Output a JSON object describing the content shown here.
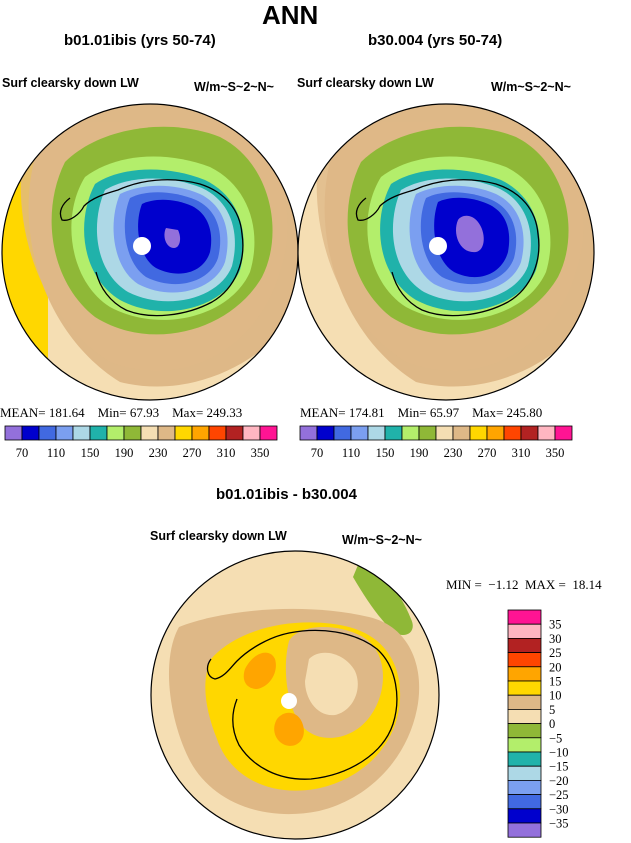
{
  "page_title": "ANN",
  "panels": [
    {
      "case": "b01.01ibis (yrs 50-74)",
      "variable": "Surf clearsky down LW",
      "units": "W/m~S~2~N~",
      "stats": {
        "mean_label": "MEAN=",
        "mean": "181.64",
        "min_label": "Min=",
        "min": "67.93",
        "max_label": "Max=",
        "max": "249.33"
      }
    },
    {
      "case": "b30.004 (yrs 50-74)",
      "variable": "Surf clearsky down LW",
      "units": "W/m~S~2~N~",
      "stats": {
        "mean_label": "MEAN=",
        "mean": "174.81",
        "min_label": "Min=",
        "min": "65.97",
        "max_label": "Max=",
        "max": "245.80"
      }
    }
  ],
  "horizontal_colorbar": {
    "colors": [
      "#9370db",
      "#0000cd",
      "#4169e1",
      "#7b9ff0",
      "#add8e6",
      "#20b2aa",
      "#b3ee6b",
      "#8fb837",
      "#f5deb3",
      "#deb887",
      "#ffd700",
      "#ffa500",
      "#ff4500",
      "#b22222",
      "#ffb6c1",
      "#ff1493"
    ],
    "labels": [
      "70",
      "110",
      "150",
      "190",
      "230",
      "270",
      "310",
      "350"
    ]
  },
  "diff_panel": {
    "title": "b01.01ibis - b30.004",
    "variable": "Surf clearsky down LW",
    "units": "W/m~S~2~N~",
    "min_label": "MIN =",
    "min": "−1.12",
    "max_label": "MAX =",
    "max": "18.14"
  },
  "vertical_colorbar": {
    "colors": [
      "#ff1493",
      "#ffb6c1",
      "#b22222",
      "#ff4500",
      "#ffa500",
      "#ffd700",
      "#deb887",
      "#f5deb3",
      "#8fb837",
      "#b3ee6b",
      "#20b2aa",
      "#add8e6",
      "#7b9ff0",
      "#4169e1",
      "#0000cd",
      "#9370db"
    ],
    "labels": [
      "35",
      "30",
      "25",
      "20",
      "15",
      "10",
      "5",
      "0",
      "−5",
      "−10",
      "−15",
      "−20",
      "−25",
      "−30",
      "−35"
    ]
  }
}
